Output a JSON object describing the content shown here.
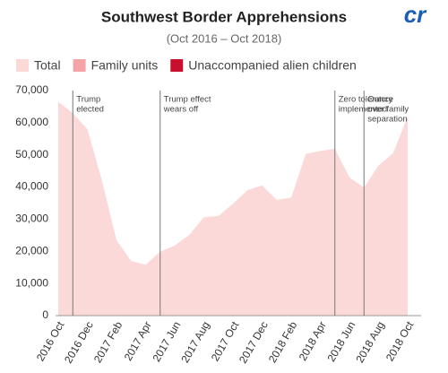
{
  "chart_data": {
    "type": "area",
    "title": "Southwest Border Apprehensions",
    "subtitle": "(Oct 2016 – Oct 2018)",
    "logo": "cr",
    "categories": [
      "2016 Oct",
      null,
      "2016 Dec",
      null,
      "2017 Feb",
      null,
      "2017 Apr",
      null,
      "2017 Jun",
      null,
      "2017 Aug",
      null,
      "2017 Oct",
      null,
      "2017 Dec",
      null,
      "2018 Feb",
      null,
      "2018 Apr",
      null,
      "2018 Jun",
      null,
      "2018 Aug",
      null,
      "2018 Oct"
    ],
    "series": [
      {
        "name": "Total",
        "color": "#fcd9d9",
        "values": [
          66500,
          63000,
          58000,
          42000,
          23500,
          17000,
          15800,
          19900,
          21800,
          25100,
          30600,
          31000,
          34800,
          39000,
          40500,
          36000,
          36700,
          50300,
          51200,
          51900,
          43000,
          39800,
          46700,
          50500,
          62000
        ]
      },
      {
        "name": "Family units",
        "color": "#f4a3a8",
        "values": [
          null,
          null,
          null,
          null,
          null,
          null,
          null,
          null,
          null,
          null,
          null,
          null,
          null,
          null,
          null,
          null,
          null,
          null,
          null,
          null,
          null,
          null,
          null,
          null,
          null
        ]
      },
      {
        "name": "Unaccompanied alien children",
        "color": "#c8102e",
        "values": [
          null,
          null,
          null,
          null,
          null,
          null,
          null,
          null,
          null,
          null,
          null,
          null,
          null,
          null,
          null,
          null,
          null,
          null,
          null,
          null,
          null,
          null,
          null,
          null,
          null
        ]
      }
    ],
    "ylim": [
      0,
      70000
    ],
    "yticks": [
      0,
      {
        "value": 10000,
        "label": "10,000"
      },
      {
        "value": 20000,
        "label": "20,000"
      },
      {
        "value": 30000,
        "label": "30,000"
      },
      {
        "value": 40000,
        "label": "40,000"
      },
      {
        "value": 50000,
        "label": "50,000"
      },
      {
        "value": 60000,
        "label": "60,000"
      },
      {
        "value": 70000,
        "label": "70,000"
      }
    ],
    "annotations": [
      {
        "index": 1,
        "lines": [
          "Trump",
          "elected"
        ]
      },
      {
        "index": 7,
        "lines": [
          "Trump effect",
          "wears off"
        ]
      },
      {
        "index": 19,
        "lines": [
          "Zero tolerance",
          "implemented"
        ]
      },
      {
        "index": 21,
        "lines": [
          "Outcry",
          "over family",
          "separation"
        ]
      }
    ]
  }
}
